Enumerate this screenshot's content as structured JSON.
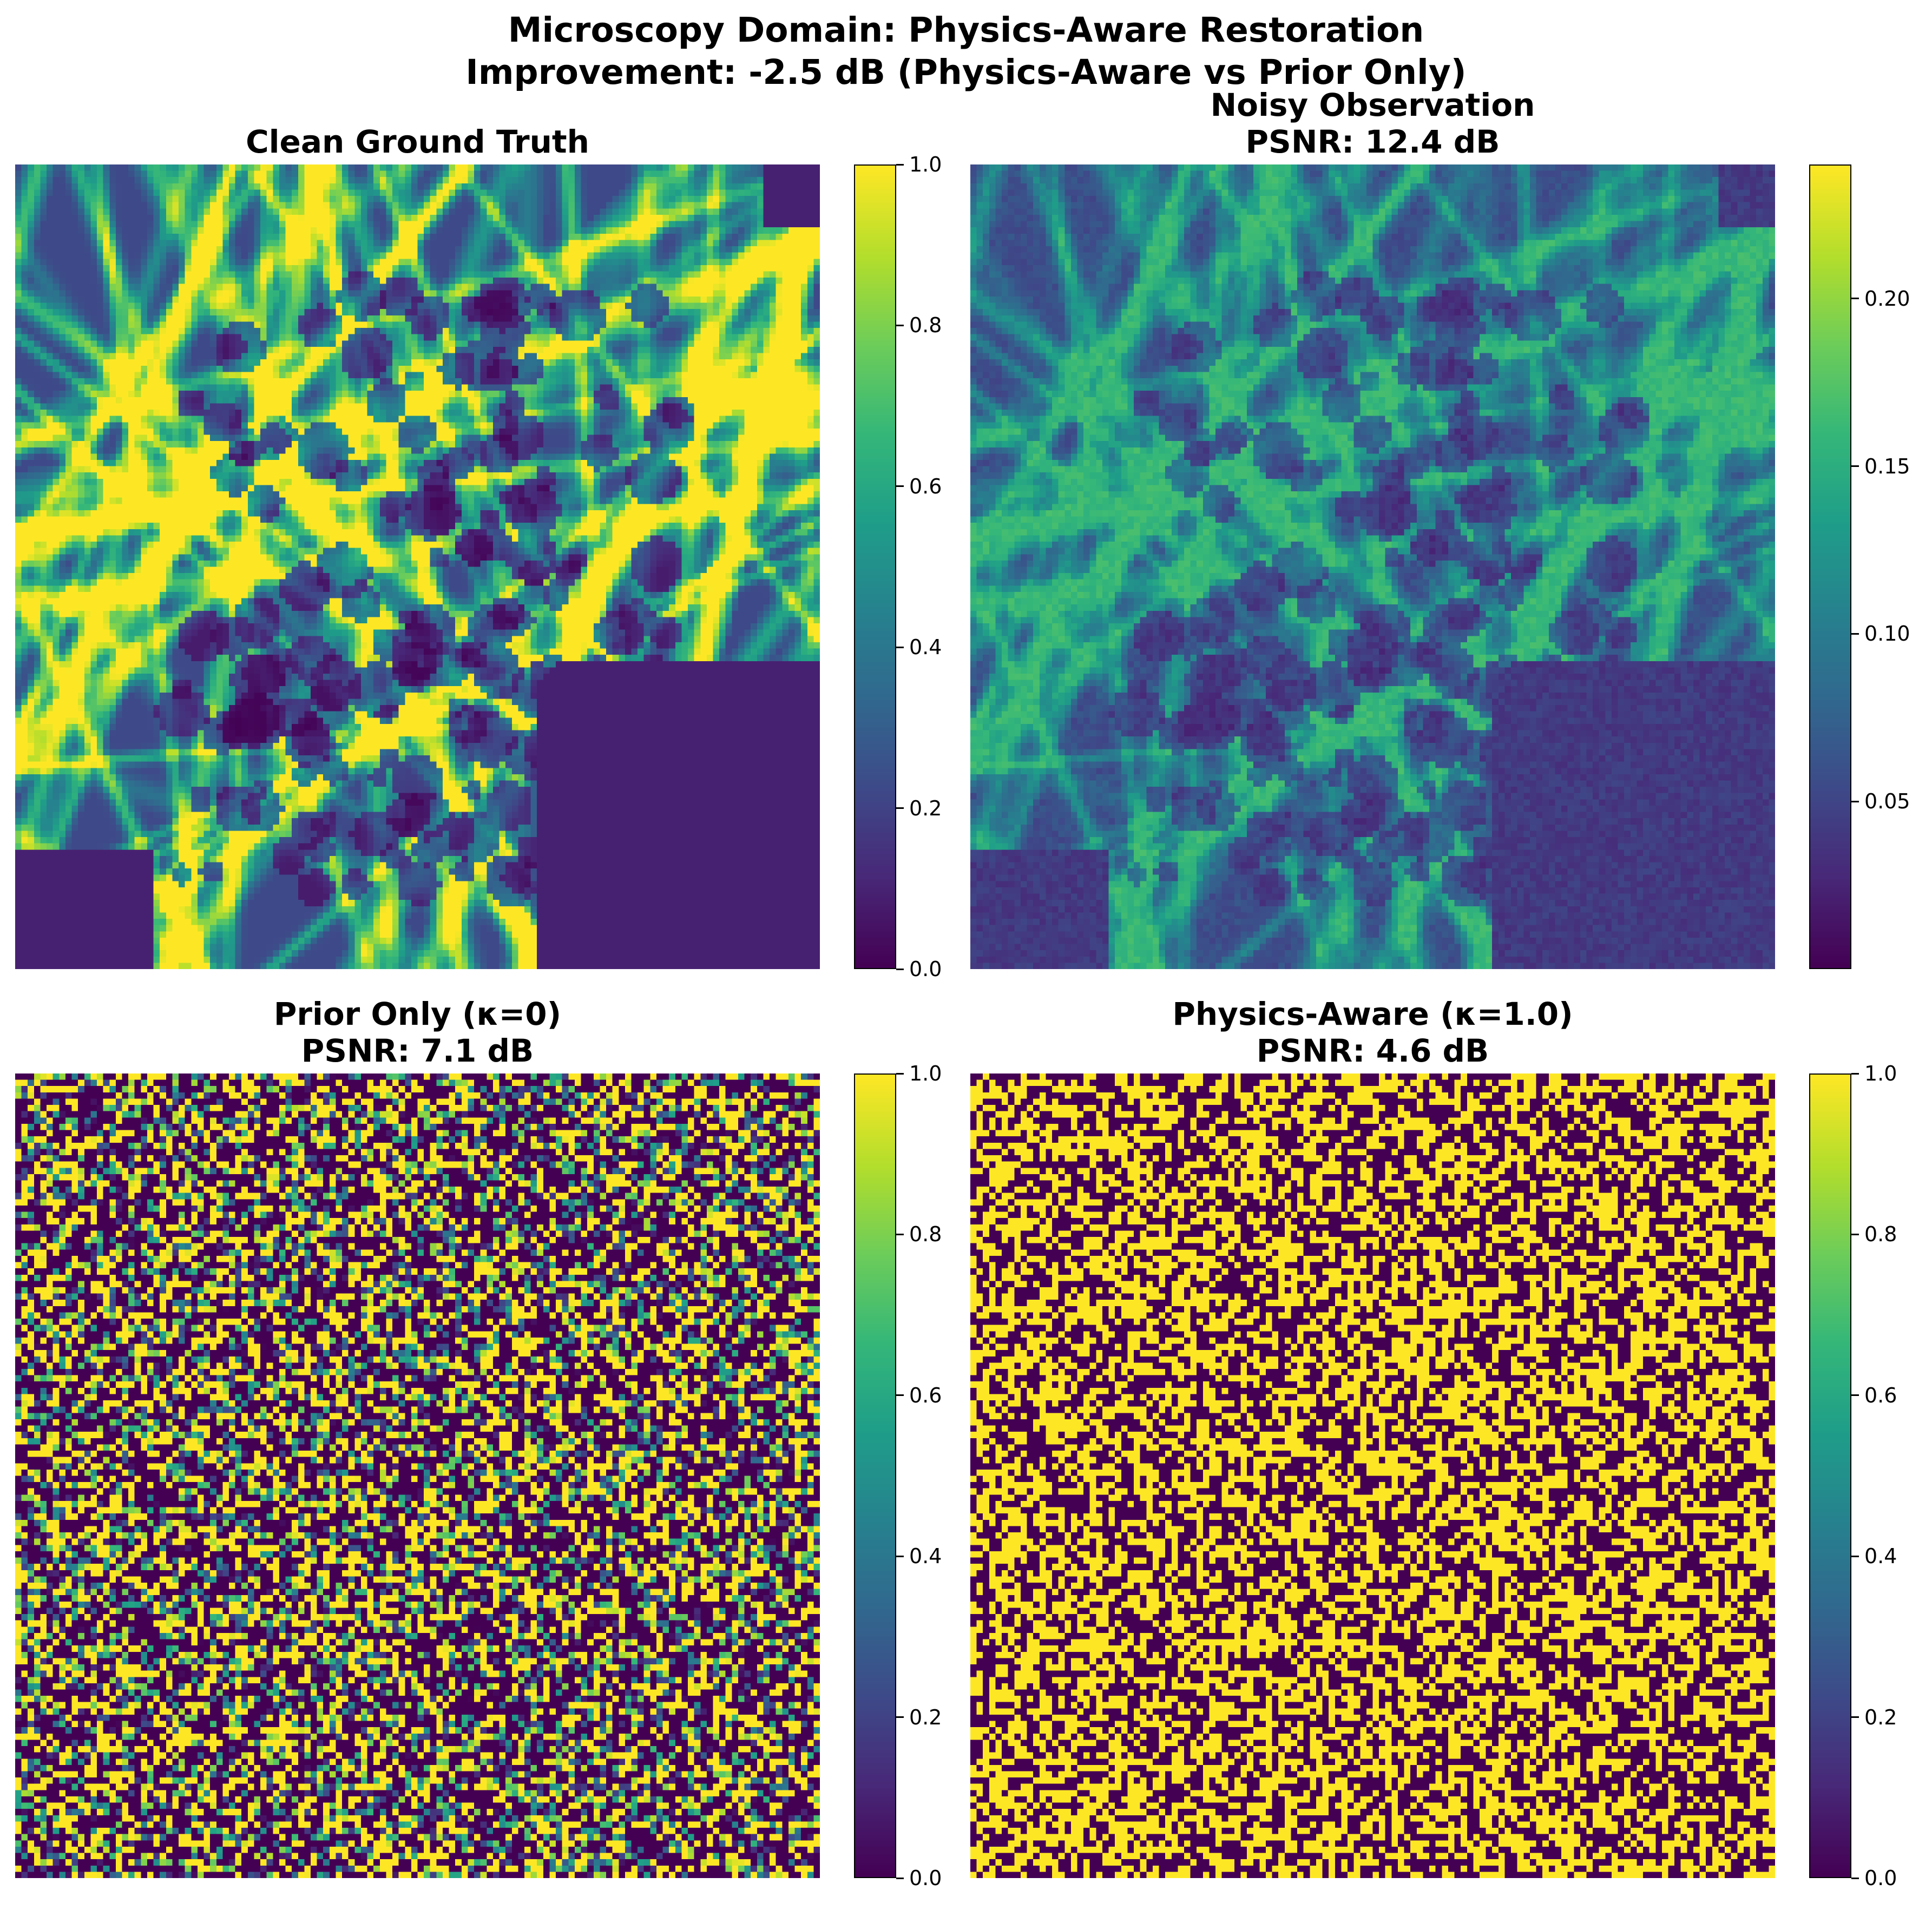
{
  "suptitle_line1": "Microscopy Domain: Physics-Aware Restoration",
  "suptitle_line2": "Improvement: -2.5 dB (Physics-Aware vs Prior Only)",
  "colormap": "viridis",
  "colors": {
    "viridis_low": "#440154",
    "viridis_mid": "#21918c",
    "viridis_high": "#fde725"
  },
  "chart_data": [
    {
      "type": "heatmap",
      "title_line1": "Clean Ground Truth",
      "title_line2": "",
      "image_grid": [
        128,
        128
      ],
      "axes": "off",
      "colorbar": {
        "range": [
          0.0,
          1.0
        ],
        "ticks": [
          "0.0",
          "0.2",
          "0.4",
          "0.6",
          "0.8",
          "1.0"
        ]
      }
    },
    {
      "type": "heatmap",
      "title_line1": "Noisy Observation",
      "title_line2": "PSNR: 12.4 dB",
      "image_grid": [
        128,
        128
      ],
      "axes": "off",
      "colorbar": {
        "range": [
          0.0,
          0.24
        ],
        "ticks": [
          "0.05",
          "0.10",
          "0.15",
          "0.20"
        ]
      }
    },
    {
      "type": "heatmap",
      "title_line1": "Prior Only (κ=0)",
      "title_line2": "PSNR: 7.1 dB",
      "image_grid": [
        128,
        128
      ],
      "axes": "off",
      "colorbar": {
        "range": [
          0.0,
          1.0
        ],
        "ticks": [
          "0.0",
          "0.2",
          "0.4",
          "0.6",
          "0.8",
          "1.0"
        ]
      }
    },
    {
      "type": "heatmap",
      "title_line1": "Physics-Aware (κ=1.0)",
      "title_line2": "PSNR: 4.6 dB",
      "image_grid": [
        128,
        128
      ],
      "axes": "off",
      "colorbar": {
        "range": [
          0.0,
          1.0
        ],
        "ticks": [
          "0.0",
          "0.2",
          "0.4",
          "0.6",
          "0.8",
          "1.0"
        ]
      }
    }
  ]
}
